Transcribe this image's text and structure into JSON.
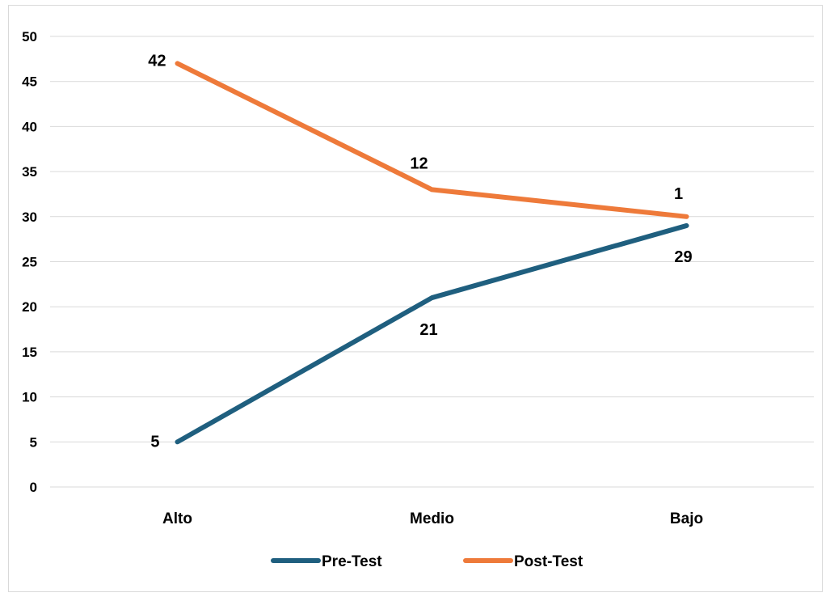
{
  "chart_data": {
    "type": "line",
    "categories": [
      "Alto",
      "Medio",
      "Bajo"
    ],
    "series": [
      {
        "name": "Pre-Test",
        "color": "#1f5f7f",
        "values": [
          5,
          21,
          29
        ],
        "labels": [
          "5",
          "21",
          "29"
        ]
      },
      {
        "name": "Post-Test",
        "color": "#ee7a3a",
        "values": [
          47,
          33,
          30
        ],
        "labels": [
          "42",
          "12",
          "1"
        ]
      }
    ],
    "title": "",
    "xlabel": "",
    "ylabel": "",
    "ylim": [
      0,
      50
    ],
    "yticks": [
      "0",
      "5",
      "10",
      "15",
      "20",
      "25",
      "30",
      "35",
      "40",
      "45",
      "50"
    ],
    "grid": true,
    "legend_position": "bottom"
  }
}
